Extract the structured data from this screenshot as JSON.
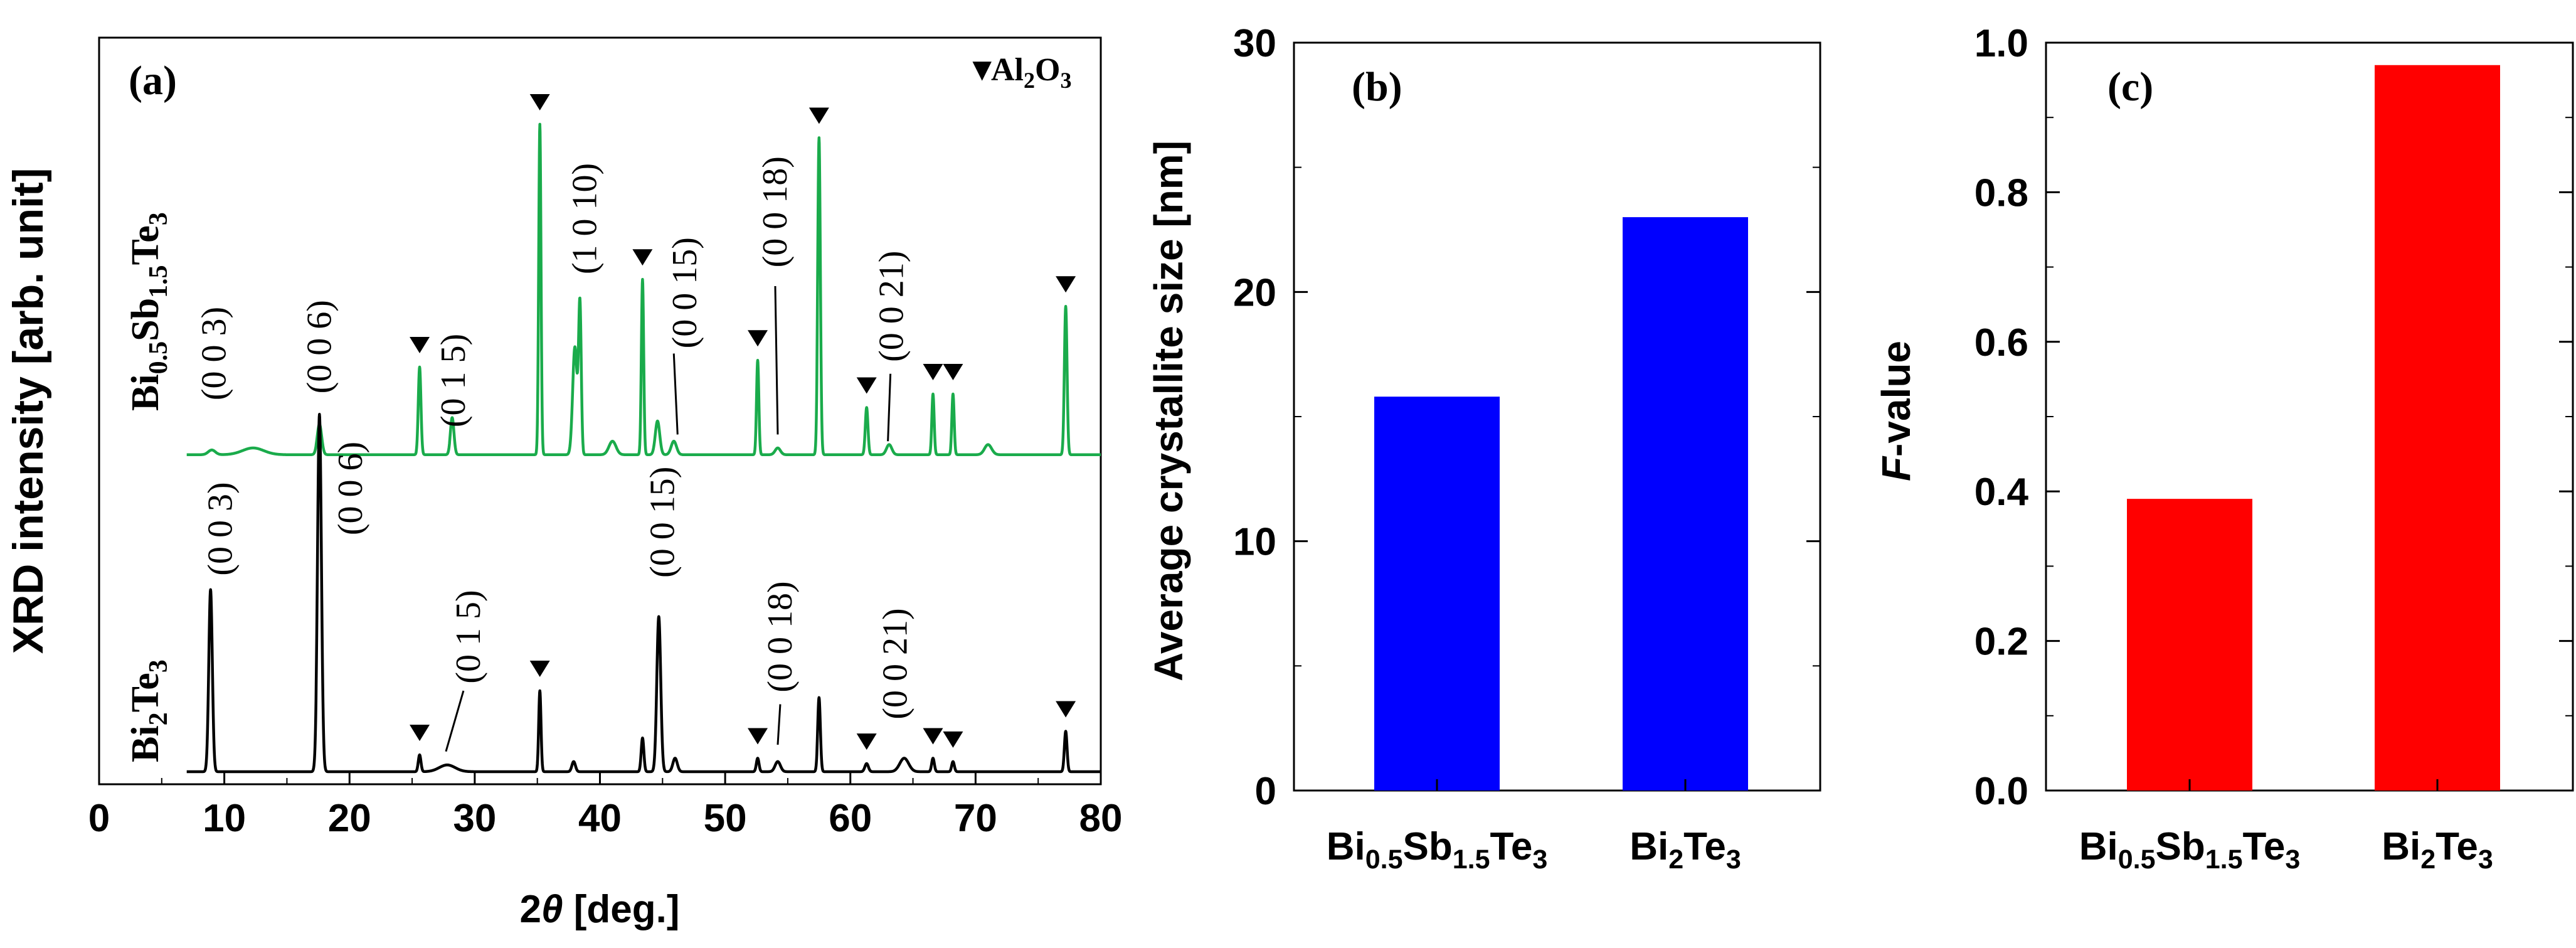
{
  "chart_data": [
    {
      "id": "a",
      "type": "line",
      "panel_label": "(a)",
      "xlabel": "2θ [deg.]",
      "xlabel_parts": [
        "2",
        "θ",
        " [deg.]"
      ],
      "ylabel": "XRD intensity [arb. unit]",
      "xlim": [
        0,
        80
      ],
      "xticks": [
        0,
        10,
        20,
        30,
        40,
        50,
        60,
        70,
        80
      ],
      "legend": {
        "marker": "▼",
        "label": "Al2O3",
        "label_parts": [
          "Al",
          "2",
          "O",
          "3"
        ]
      },
      "colors": {
        "Bi0.5Sb1.5Te3": "#1aab4b",
        "Bi2Te3": "#000000"
      },
      "series": [
        {
          "name": "Bi0.5Sb1.5Te3",
          "label_parts": [
            "Bi",
            "0.5",
            "Sb",
            "1.5",
            "Te",
            "3"
          ],
          "baseline": 0.47,
          "x_range": [
            7,
            80
          ],
          "peaks": [
            [
              9.0,
              0.007,
              0.4
            ],
            [
              12.3,
              0.01,
              1.2
            ],
            [
              17.6,
              0.045,
              0.25
            ],
            [
              25.6,
              0.13,
              0.15
            ],
            [
              28.2,
              0.055,
              0.2
            ],
            [
              35.2,
              0.49,
              0.13
            ],
            [
              38.0,
              0.16,
              0.25
            ],
            [
              38.4,
              0.22,
              0.15
            ],
            [
              41.0,
              0.02,
              0.4
            ],
            [
              43.4,
              0.26,
              0.13
            ],
            [
              44.6,
              0.05,
              0.25
            ],
            [
              45.9,
              0.02,
              0.3
            ],
            [
              52.6,
              0.14,
              0.13
            ],
            [
              54.2,
              0.01,
              0.3
            ],
            [
              57.5,
              0.47,
              0.15
            ],
            [
              61.3,
              0.07,
              0.15
            ],
            [
              63.1,
              0.015,
              0.3
            ],
            [
              66.6,
              0.09,
              0.13
            ],
            [
              68.2,
              0.09,
              0.13
            ],
            [
              71.0,
              0.015,
              0.4
            ],
            [
              77.2,
              0.22,
              0.15
            ]
          ]
        },
        {
          "name": "Bi2Te3",
          "label_parts": [
            "Bi",
            "2",
            "Te",
            "3"
          ],
          "baseline": 0.0,
          "x_range": [
            7,
            80
          ],
          "peaks": [
            [
              8.9,
              0.27,
              0.2
            ],
            [
              17.6,
              0.53,
              0.22
            ],
            [
              25.6,
              0.025,
              0.15
            ],
            [
              27.8,
              0.01,
              0.9
            ],
            [
              35.2,
              0.12,
              0.13
            ],
            [
              37.9,
              0.015,
              0.2
            ],
            [
              43.4,
              0.05,
              0.15
            ],
            [
              44.7,
              0.23,
              0.22
            ],
            [
              46.0,
              0.02,
              0.25
            ],
            [
              52.6,
              0.02,
              0.15
            ],
            [
              54.2,
              0.015,
              0.3
            ],
            [
              57.5,
              0.11,
              0.15
            ],
            [
              61.3,
              0.012,
              0.2
            ],
            [
              64.3,
              0.02,
              0.5
            ],
            [
              66.6,
              0.02,
              0.15
            ],
            [
              68.2,
              0.015,
              0.15
            ],
            [
              77.2,
              0.06,
              0.15
            ]
          ]
        }
      ],
      "markers": [
        {
          "series": "Bi0.5Sb1.5Te3",
          "x": [
            25.6,
            35.2,
            43.4,
            52.6,
            57.5,
            61.3,
            66.6,
            68.2,
            77.2
          ]
        },
        {
          "series": "Bi2Te3",
          "x": [
            25.6,
            35.2,
            52.6,
            61.3,
            66.6,
            68.2,
            77.2
          ]
        }
      ],
      "annotations": [
        {
          "series": "Bi0.5Sb1.5Te3",
          "text": "(0 0 3)",
          "x": 9.2,
          "y": 0.62
        },
        {
          "series": "Bi0.5Sb1.5Te3",
          "text": "(0 0 6)",
          "x": 17.6,
          "y": 0.63
        },
        {
          "series": "Bi0.5Sb1.5Te3",
          "text": "(0 1 5)",
          "x": 28.3,
          "y": 0.58
        },
        {
          "series": "Bi0.5Sb1.5Te3",
          "text": "(1 0 10)",
          "x": 38.8,
          "y": 0.82
        },
        {
          "series": "Bi0.5Sb1.5Te3",
          "text": "(0 0 15)",
          "x": 46.8,
          "y": 0.71
        },
        {
          "series": "Bi0.5Sb1.5Te3",
          "text": "(0 0 18)",
          "x": 54.0,
          "y": 0.83
        },
        {
          "series": "Bi0.5Sb1.5Te3",
          "text": "(0 0 21)",
          "x": 63.3,
          "y": 0.69
        },
        {
          "series": "Bi2Te3",
          "text": "(0 0 3)",
          "x": 9.7,
          "y": 0.36
        },
        {
          "series": "Bi2Te3",
          "text": "(0 0 6)",
          "x": 20.1,
          "y": 0.42
        },
        {
          "series": "Bi2Te3",
          "text": "(0 1 5)",
          "x": 29.5,
          "y": 0.2
        },
        {
          "series": "Bi2Te3",
          "text": "(0 0 15)",
          "x": 45.0,
          "y": 0.37
        },
        {
          "series": "Bi2Te3",
          "text": "(0 0 18)",
          "x": 54.4,
          "y": 0.2
        },
        {
          "series": "Bi2Te3",
          "text": "(0 0 21)",
          "x": 63.6,
          "y": 0.16
        }
      ]
    },
    {
      "id": "b",
      "type": "bar",
      "panel_label": "(b)",
      "categories": [
        "Bi0.5Sb1.5Te3",
        "Bi2Te3"
      ],
      "category_parts": [
        [
          "Bi",
          "0.5",
          "Sb",
          "1.5",
          "Te",
          "3"
        ],
        [
          "Bi",
          "2",
          "Te",
          "3"
        ]
      ],
      "values": [
        15.8,
        23.0
      ],
      "ylabel": "Average crystallite size [nm]",
      "ylim": [
        0,
        30
      ],
      "yticks": [
        "0",
        "10",
        "20",
        "30"
      ],
      "color": "#0000ff"
    },
    {
      "id": "c",
      "type": "bar",
      "panel_label": "(c)",
      "categories": [
        "Bi0.5Sb1.5Te3",
        "Bi2Te3"
      ],
      "category_parts": [
        [
          "Bi",
          "0.5",
          "Sb",
          "1.5",
          "Te",
          "3"
        ],
        [
          "Bi",
          "2",
          "Te",
          "3"
        ]
      ],
      "values": [
        0.39,
        0.97
      ],
      "ylabel": "F-value",
      "ylabel_parts": [
        "F",
        "-value"
      ],
      "ylim": [
        0,
        1.0
      ],
      "yticks": [
        "0.0",
        "0.2",
        "0.4",
        "0.6",
        "0.8",
        "1.0"
      ],
      "color": "#ff0000"
    }
  ]
}
